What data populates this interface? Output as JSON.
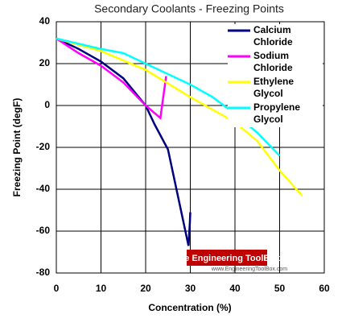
{
  "chart_data": {
    "type": "line",
    "title": "Secondary Coolants - Freezing Points",
    "x_label": "Concentration (%)",
    "y_label": "Freezing Point (degF)",
    "xlim": [
      0,
      60
    ],
    "xticks": [
      0,
      10,
      20,
      30,
      40,
      50,
      60
    ],
    "ylim": [
      -80,
      40
    ],
    "yticks": [
      -80,
      -60,
      -40,
      -20,
      0,
      20,
      40
    ],
    "grid": true,
    "watermark": "The Engineering ToolBox",
    "watermark_url": "www.EngineeringToolBox.com",
    "series": [
      {
        "name": "Calcium Chloride",
        "color": "#000080",
        "x": [
          0,
          5,
          10,
          15,
          20,
          22,
          25,
          29.6,
          29.9,
          30
        ],
        "values": [
          32,
          27,
          21,
          13,
          0,
          -9,
          -21,
          -67,
          -56,
          -51
        ]
      },
      {
        "name": "Sodium Chloride",
        "color": "#ff00ff",
        "x": [
          0,
          5,
          10,
          15,
          20,
          23.3,
          24,
          24.6
        ],
        "values": [
          32,
          25,
          19,
          11,
          0,
          -6,
          5,
          14
        ]
      },
      {
        "name": "Ethylene Glycol",
        "color": "#ffff00",
        "x": [
          0,
          10,
          20,
          30,
          40,
          45,
          50,
          55
        ],
        "values": [
          32,
          26,
          17,
          4,
          -8,
          -17,
          -31,
          -43
        ]
      },
      {
        "name": "Propylene Glycol",
        "color": "#00ffff",
        "x": [
          0,
          10,
          15,
          20,
          25,
          30,
          35,
          40,
          45,
          50
        ],
        "values": [
          32,
          27,
          25,
          20,
          15,
          10,
          4,
          -4,
          -13,
          -24
        ]
      }
    ]
  }
}
